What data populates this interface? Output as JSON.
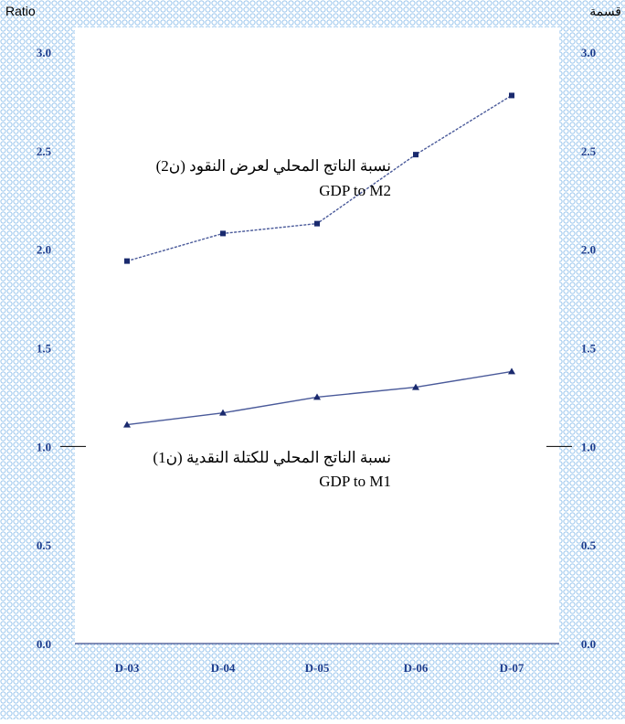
{
  "header": {
    "left_unit": "Ratio",
    "right_unit": "قسمة"
  },
  "colors": {
    "pattern_blue": "#9ec8ee",
    "axis_text": "#1f3f8f",
    "series_line": "#4a5a9a",
    "marker": "#1a2a6e"
  },
  "chart_data": {
    "type": "line",
    "categories": [
      "D-03",
      "D-04",
      "D-05",
      "D-06",
      "D-07"
    ],
    "ylim": [
      0.0,
      3.0
    ],
    "yticks": [
      "0.0",
      "0.5",
      "1.0",
      "1.5",
      "2.0",
      "2.5",
      "3.0"
    ],
    "grid": false,
    "series": [
      {
        "name_ar": "نسبة الناتج المحلي لعرض النقود (ن2)",
        "name_en": "GDP to M2",
        "marker": "square",
        "values": [
          1.94,
          2.08,
          2.13,
          2.48,
          2.78
        ]
      },
      {
        "name_ar": "نسبة الناتج المحلي للكتلة النقدية (ن1)",
        "name_en": "GDP to M1",
        "marker": "triangle",
        "values": [
          1.11,
          1.17,
          1.25,
          1.3,
          1.38
        ]
      }
    ]
  }
}
